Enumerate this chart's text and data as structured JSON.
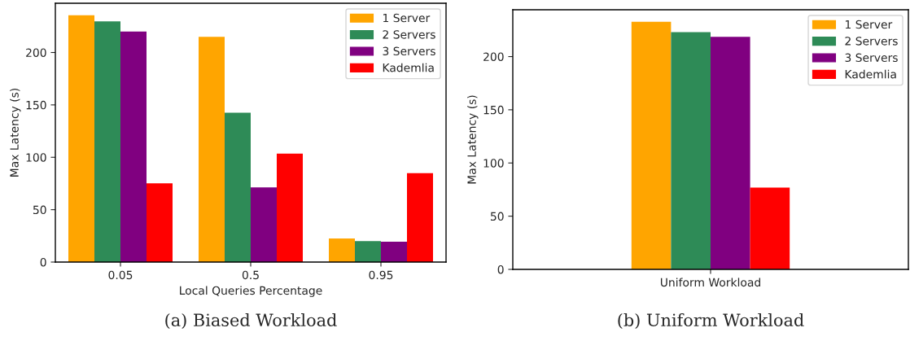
{
  "chart_data": [
    {
      "type": "bar",
      "title": "(a) Biased Workload",
      "xlabel": "Local Queries Percentage",
      "ylabel": "Max Latency (s)",
      "categories": [
        "0.05",
        "0.5",
        "0.95"
      ],
      "series": [
        {
          "name": "1 Server",
          "color": "#ffa500",
          "values": [
            235.5,
            215,
            22.5
          ]
        },
        {
          "name": "2 Servers",
          "color": "#2e8b57",
          "values": [
            229.7,
            142.6,
            20
          ]
        },
        {
          "name": "3 Servers",
          "color": "#800080",
          "values": [
            220,
            71.3,
            19.4
          ]
        },
        {
          "name": "Kademlia",
          "color": "#ff0000",
          "values": [
            75.2,
            103.5,
            84.9
          ]
        }
      ],
      "ylim": [
        0,
        247
      ],
      "yticks": [
        0,
        50,
        100,
        150,
        200
      ],
      "legend": "top right"
    },
    {
      "type": "bar",
      "title": "(b) Uniform Workload",
      "ylabel": "Max Latency (s)",
      "categories": [
        "Uniform Workload"
      ],
      "series": [
        {
          "name": "1 Server",
          "color": "#ffa500",
          "values": [
            232.8
          ]
        },
        {
          "name": "2 Servers",
          "color": "#2e8b57",
          "values": [
            223
          ]
        },
        {
          "name": "3 Servers",
          "color": "#800080",
          "values": [
            218.6
          ]
        },
        {
          "name": "Kademlia",
          "color": "#ff0000",
          "values": [
            76.9
          ]
        }
      ],
      "ylim": [
        0,
        244
      ],
      "yticks": [
        0,
        50,
        100,
        150,
        200
      ],
      "legend": "top right"
    }
  ]
}
